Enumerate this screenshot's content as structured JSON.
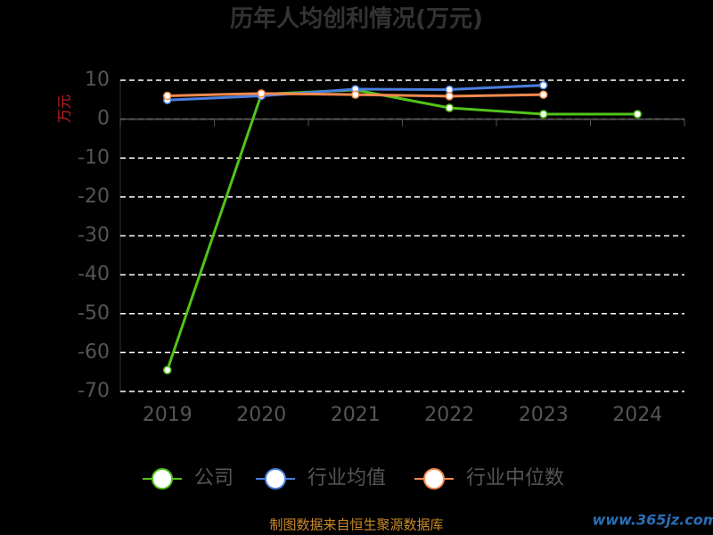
{
  "chart_data": {
    "type": "line",
    "title": "历年人均创利情况(万元)",
    "y_label": "万元",
    "categories": [
      "2019",
      "2020",
      "2021",
      "2022",
      "2023",
      "2024"
    ],
    "series": [
      {
        "name": "公司",
        "color": "#52c41a",
        "values": [
          -64.5,
          6.4,
          7.5,
          2.9,
          1.3,
          1.3
        ]
      },
      {
        "name": "行业均值",
        "color": "#4a7fe0",
        "values": [
          4.9,
          6.0,
          7.7,
          7.6,
          8.7,
          null
        ]
      },
      {
        "name": "行业中位数",
        "color": "#f58a4e",
        "values": [
          6.0,
          6.6,
          6.3,
          5.9,
          6.3,
          null
        ]
      }
    ],
    "ylim": [
      -70,
      10
    ],
    "yticks": [
      -70,
      -60,
      -50,
      -40,
      -30,
      -20,
      -10,
      0,
      10
    ],
    "grid": true,
    "legend": "bottom",
    "source": "制图数据来自恒生聚源数据库",
    "watermark": "www.365jz.com"
  }
}
